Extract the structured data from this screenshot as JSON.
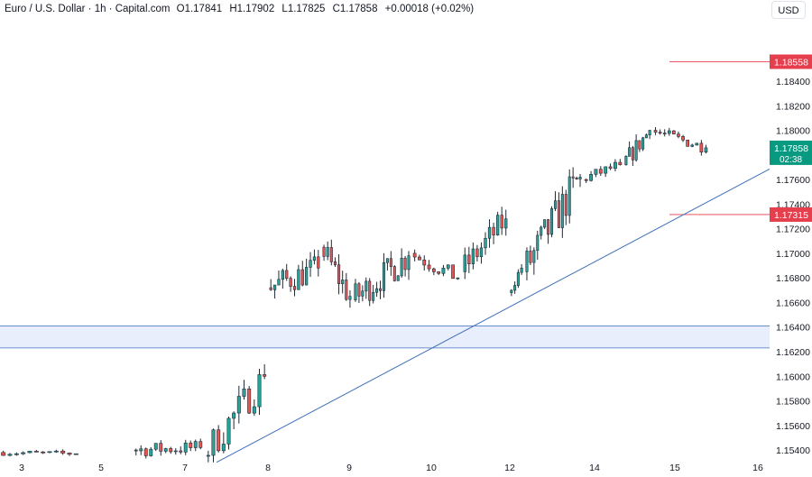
{
  "legend": {
    "symbol": "Euro / U.S. Dollar · 1h · Capital.com",
    "open": "O1.17841",
    "high": "H1.17902",
    "low": "L1.17825",
    "close": "C1.17858",
    "change": "+0.00018 (+0.02%)"
  },
  "currency_button": "USD",
  "colors": {
    "up": "#26a69a",
    "down": "#ef5350",
    "candle_border": "#1f2a37",
    "trendline": "#3e6fb9",
    "zone_fill": "#e8eefc",
    "zone_border": "#3e6fb9",
    "resistance": "#e53e4d",
    "last_price": "#089981"
  },
  "chart_data": {
    "type": "candlestick",
    "ylim": [
      1.1532,
      1.1906
    ],
    "y_ticks": [
      "1.15400",
      "1.15600",
      "1.15800",
      "1.16000",
      "1.16200",
      "1.16400",
      "1.16600",
      "1.16800",
      "1.17000",
      "1.17200",
      "1.17400",
      "1.17600",
      "1.17800",
      "1.18000",
      "1.18200",
      "1.18400"
    ],
    "x_ticks": [
      "3",
      "5",
      "7",
      "8",
      "9",
      "10",
      "12",
      "14",
      "15",
      "16"
    ],
    "zone": {
      "low": 1.1623,
      "high": 1.1641
    },
    "trendline": {
      "from_date": "7",
      "from_price": 1.153,
      "to_date": "16",
      "to_price": 1.177
    },
    "levels": [
      {
        "label": "1.18558",
        "price": 1.18558,
        "kind": "resistance"
      },
      {
        "label": "1.17315",
        "price": 1.17315,
        "kind": "support"
      }
    ],
    "last_price": {
      "label": "1.17858",
      "countdown": "02:38",
      "price": 1.17858
    },
    "segments": [
      {
        "session": "3",
        "from": 1.1538,
        "to": 1.1537,
        "low": 1.1532,
        "high": 1.1545
      },
      {
        "session": "7",
        "from": 1.154,
        "to": 1.1542,
        "low": 1.1532,
        "high": 1.1565
      },
      {
        "session": "7-8",
        "from": 1.1535,
        "to": 1.16,
        "low": 1.153,
        "high": 1.161
      },
      {
        "session": "8",
        "from": 1.1672,
        "to": 1.1688,
        "low": 1.166,
        "high": 1.1725
      },
      {
        "session": "9",
        "from": 1.1705,
        "to": 1.1665,
        "low": 1.1643,
        "high": 1.1715
      },
      {
        "session": "9-10",
        "from": 1.1662,
        "to": 1.1698,
        "low": 1.1652,
        "high": 1.1722
      },
      {
        "session": "10",
        "from": 1.17,
        "to": 1.168,
        "low": 1.1672,
        "high": 1.171
      },
      {
        "session": "10-12",
        "from": 1.1685,
        "to": 1.1728,
        "low": 1.1675,
        "high": 1.174
      },
      {
        "session": "12",
        "from": 1.1668,
        "to": 1.1688,
        "low": 1.1662,
        "high": 1.1692
      },
      {
        "session": "12-14",
        "from": 1.1685,
        "to": 1.1762,
        "low": 1.1678,
        "high": 1.177
      },
      {
        "session": "14",
        "from": 1.176,
        "to": 1.1772,
        "low": 1.1753,
        "high": 1.178
      },
      {
        "session": "14-15",
        "from": 1.1772,
        "to": 1.18,
        "low": 1.1768,
        "high": 1.1812
      },
      {
        "session": "15",
        "from": 1.18,
        "to": 1.17858,
        "low": 1.1778,
        "high": 1.1805
      }
    ]
  }
}
